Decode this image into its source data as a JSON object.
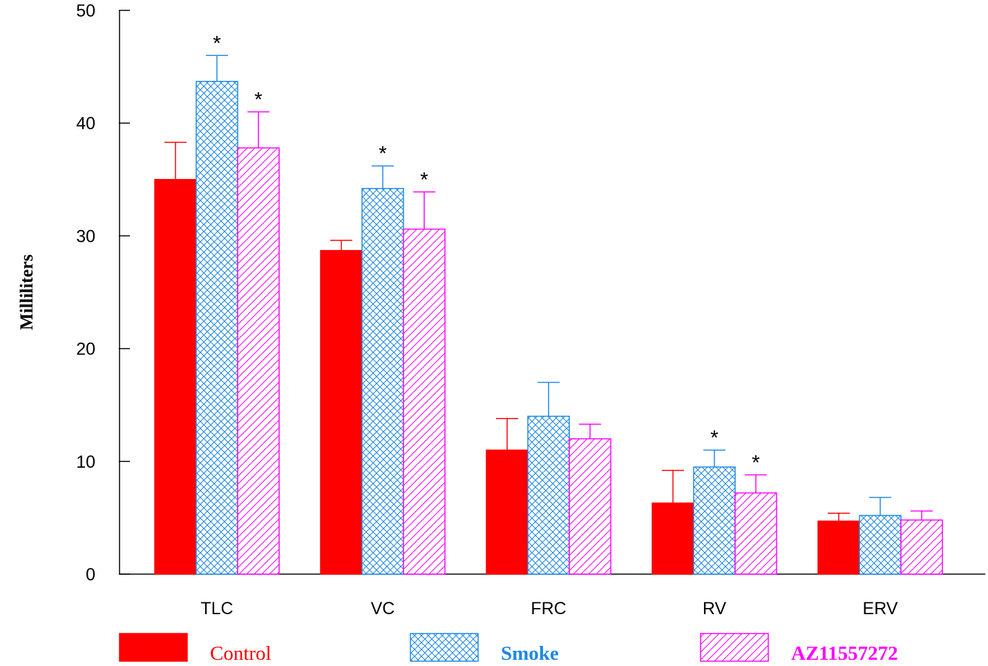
{
  "chart_data": {
    "type": "bar",
    "title": "",
    "xlabel": "",
    "ylabel": "Milliliters",
    "ylim": [
      0,
      50
    ],
    "yticks": [
      0,
      10,
      20,
      30,
      40,
      50
    ],
    "grid": false,
    "legend_position": "bottom",
    "categories": [
      "TLC",
      "VC",
      "FRC",
      "RV",
      "ERV"
    ],
    "series": [
      {
        "name": "Control",
        "color": "#ff0000",
        "pattern": "solid",
        "values": [
          35.0,
          28.7,
          11.0,
          6.3,
          4.7
        ],
        "errors": [
          3.3,
          0.9,
          2.8,
          2.9,
          0.7
        ],
        "significant": [
          false,
          false,
          false,
          false,
          false
        ]
      },
      {
        "name": "Smoke",
        "color": "#1e88e5",
        "pattern": "crosshatch",
        "values": [
          43.7,
          34.2,
          14.0,
          9.5,
          5.2
        ],
        "errors": [
          2.3,
          2.0,
          3.0,
          1.5,
          1.6
        ],
        "significant": [
          true,
          true,
          false,
          true,
          false
        ]
      },
      {
        "name": "AZ11557272",
        "color": "#ff00ff",
        "pattern": "diagonal",
        "values": [
          37.8,
          30.6,
          12.0,
          7.2,
          4.8
        ],
        "errors": [
          3.2,
          3.3,
          1.3,
          1.6,
          0.8
        ],
        "significant": [
          true,
          true,
          false,
          true,
          false
        ]
      }
    ],
    "significance_marker": "*"
  }
}
